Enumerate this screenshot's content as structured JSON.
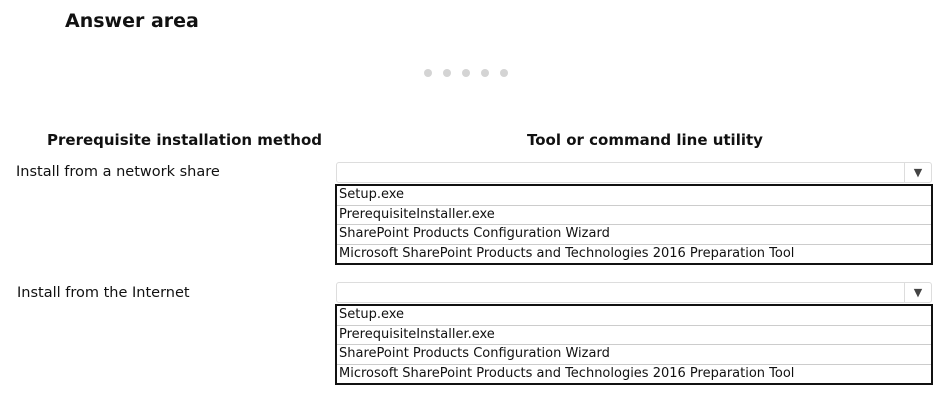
{
  "title": "Answer area",
  "pager_dots": 5,
  "headers": {
    "method": "Prerequisite installation method",
    "tool": "Tool or command line utility"
  },
  "rows": [
    {
      "label": "Install from a network share",
      "selected": "",
      "options": [
        "Setup.exe",
        "PrerequisiteInstaller.exe",
        "SharePoint Products Configuration Wizard",
        "Microsoft SharePoint Products and Technologies 2016 Preparation Tool"
      ]
    },
    {
      "label": "Install from the Internet",
      "selected": "",
      "options": [
        "Setup.exe",
        "PrerequisiteInstaller.exe",
        "SharePoint Products Configuration Wizard",
        "Microsoft SharePoint Products and Technologies 2016 Preparation Tool"
      ]
    }
  ],
  "icons": {
    "dropdown": "chevron-down-icon"
  }
}
